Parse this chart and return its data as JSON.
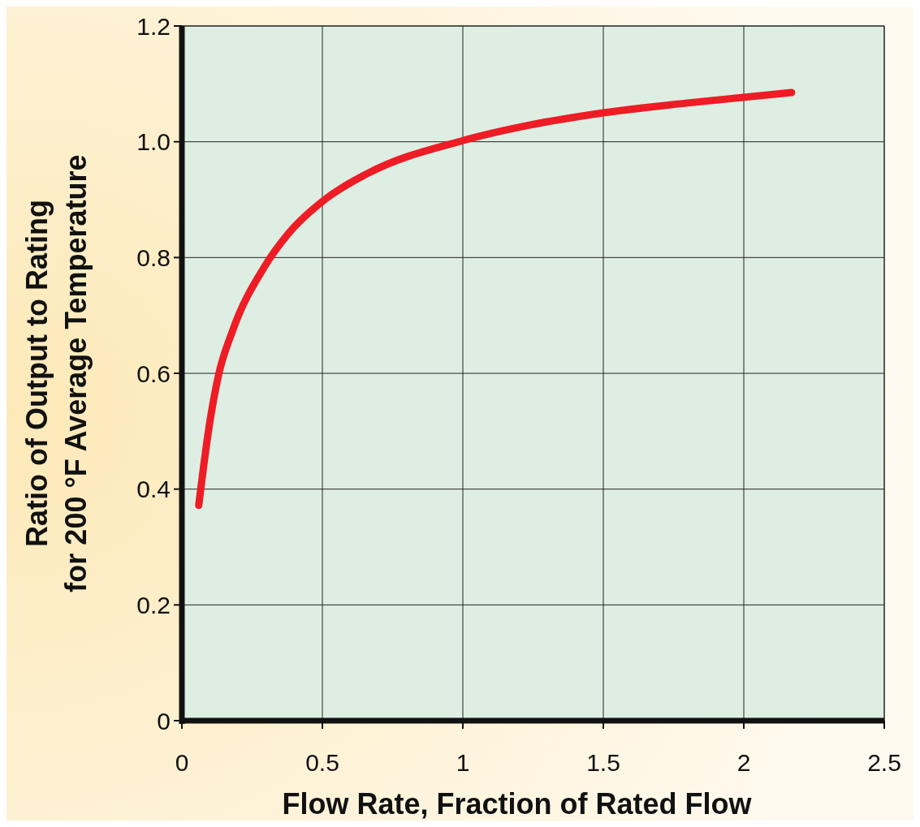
{
  "chart_data": {
    "type": "line",
    "xlabel": "Flow Rate, Fraction of Rated Flow",
    "ylabel": "Ratio of Output to Rating\nfor 200 °F Average Temperature",
    "xlim": [
      0,
      2.5
    ],
    "xticks": [
      0,
      0.5,
      1,
      1.5,
      2,
      2.5
    ],
    "ylim": [
      0,
      1.2
    ],
    "yticks": [
      0,
      0.2,
      0.4,
      0.6,
      0.8,
      {
        "value": 1,
        "label": "1.0"
      },
      1.2
    ],
    "grid": true,
    "line_style": "solid",
    "marker": "none",
    "series": [
      {
        "color": "#ee1c25",
        "x": [
          0.06,
          0.096,
          0.13,
          0.18,
          0.295,
          0.38,
          0.5,
          0.66,
          1.0,
          1.23,
          1.5,
          1.8,
          2.17
        ],
        "values": [
          0.372,
          0.505,
          0.596,
          0.673,
          0.785,
          0.842,
          0.897,
          0.945,
          1.002,
          1.028,
          1.05,
          1.067,
          1.085
        ]
      }
    ]
  }
}
